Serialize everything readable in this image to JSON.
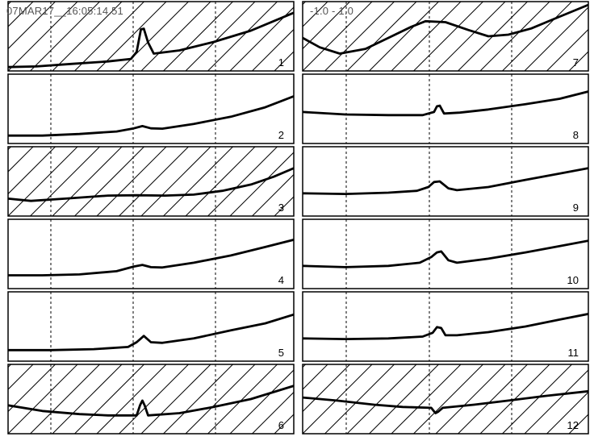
{
  "header": {
    "timestamp": "07MAR17__16:05:14.51",
    "scale": "-1.0 - 1.0"
  },
  "colors": {
    "trace": "#000000",
    "frame": "#000000",
    "hatch": "#000000",
    "gridline": "#000000",
    "background": "#ffffff",
    "header_text": "#555555"
  },
  "chart_data": {
    "type": "line",
    "grid": "dashed vertical",
    "ylim": [
      -1.0,
      1.0
    ],
    "xlim": [
      0,
      1
    ],
    "panels": [
      {
        "label": "1",
        "hatched": true,
        "points": [
          [
            0,
            -0.98
          ],
          [
            0.1,
            -0.96
          ],
          [
            0.22,
            -0.88
          ],
          [
            0.35,
            -0.8
          ],
          [
            0.43,
            -0.72
          ],
          [
            0.45,
            -0.5
          ],
          [
            0.465,
            0.22
          ],
          [
            0.475,
            0.24
          ],
          [
            0.49,
            -0.2
          ],
          [
            0.51,
            -0.55
          ],
          [
            0.6,
            -0.45
          ],
          [
            0.72,
            -0.18
          ],
          [
            0.85,
            0.18
          ],
          [
            1.0,
            0.75
          ]
        ]
      },
      {
        "label": "2",
        "hatched": false,
        "points": [
          [
            0,
            -0.85
          ],
          [
            0.12,
            -0.85
          ],
          [
            0.25,
            -0.8
          ],
          [
            0.38,
            -0.72
          ],
          [
            0.44,
            -0.62
          ],
          [
            0.47,
            -0.55
          ],
          [
            0.5,
            -0.62
          ],
          [
            0.54,
            -0.63
          ],
          [
            0.65,
            -0.48
          ],
          [
            0.78,
            -0.25
          ],
          [
            0.9,
            0.05
          ],
          [
            1.0,
            0.4
          ]
        ]
      },
      {
        "label": "3",
        "hatched": true,
        "points": [
          [
            0,
            -0.55
          ],
          [
            0.08,
            -0.62
          ],
          [
            0.2,
            -0.55
          ],
          [
            0.35,
            -0.45
          ],
          [
            0.45,
            -0.44
          ],
          [
            0.55,
            -0.45
          ],
          [
            0.65,
            -0.42
          ],
          [
            0.75,
            -0.3
          ],
          [
            0.85,
            -0.1
          ],
          [
            0.93,
            0.15
          ],
          [
            1.0,
            0.42
          ]
        ]
      },
      {
        "label": "4",
        "hatched": false,
        "points": [
          [
            0,
            -0.68
          ],
          [
            0.12,
            -0.68
          ],
          [
            0.25,
            -0.65
          ],
          [
            0.38,
            -0.55
          ],
          [
            0.44,
            -0.4
          ],
          [
            0.47,
            -0.35
          ],
          [
            0.5,
            -0.42
          ],
          [
            0.54,
            -0.43
          ],
          [
            0.65,
            -0.28
          ],
          [
            0.78,
            -0.05
          ],
          [
            0.9,
            0.22
          ],
          [
            1.0,
            0.45
          ]
        ]
      },
      {
        "label": "5",
        "hatched": false,
        "points": [
          [
            0,
            -0.75
          ],
          [
            0.15,
            -0.75
          ],
          [
            0.3,
            -0.72
          ],
          [
            0.42,
            -0.65
          ],
          [
            0.45,
            -0.5
          ],
          [
            0.475,
            -0.3
          ],
          [
            0.5,
            -0.5
          ],
          [
            0.54,
            -0.52
          ],
          [
            0.65,
            -0.38
          ],
          [
            0.78,
            -0.12
          ],
          [
            0.9,
            0.1
          ],
          [
            1.0,
            0.38
          ]
        ]
      },
      {
        "label": "6",
        "hatched": true,
        "points": [
          [
            0,
            -0.2
          ],
          [
            0.12,
            -0.38
          ],
          [
            0.25,
            -0.48
          ],
          [
            0.35,
            -0.52
          ],
          [
            0.45,
            -0.52
          ],
          [
            0.462,
            -0.2
          ],
          [
            0.47,
            -0.05
          ],
          [
            0.478,
            -0.2
          ],
          [
            0.49,
            -0.52
          ],
          [
            0.6,
            -0.45
          ],
          [
            0.72,
            -0.25
          ],
          [
            0.85,
            0.0
          ],
          [
            1.0,
            0.42
          ]
        ]
      },
      {
        "label": "7",
        "hatched": true,
        "points": [
          [
            0,
            -0.05
          ],
          [
            0.06,
            -0.35
          ],
          [
            0.13,
            -0.55
          ],
          [
            0.22,
            -0.4
          ],
          [
            0.3,
            -0.05
          ],
          [
            0.38,
            0.3
          ],
          [
            0.43,
            0.48
          ],
          [
            0.5,
            0.45
          ],
          [
            0.58,
            0.2
          ],
          [
            0.65,
            0.0
          ],
          [
            0.72,
            0.05
          ],
          [
            0.8,
            0.25
          ],
          [
            0.88,
            0.55
          ],
          [
            1.0,
            1.0
          ]
        ]
      },
      {
        "label": "8",
        "hatched": false,
        "points": [
          [
            0,
            -0.1
          ],
          [
            0.15,
            -0.18
          ],
          [
            0.3,
            -0.2
          ],
          [
            0.42,
            -0.2
          ],
          [
            0.46,
            -0.1
          ],
          [
            0.47,
            0.08
          ],
          [
            0.48,
            0.1
          ],
          [
            0.495,
            -0.15
          ],
          [
            0.55,
            -0.12
          ],
          [
            0.65,
            -0.02
          ],
          [
            0.78,
            0.15
          ],
          [
            0.9,
            0.32
          ],
          [
            1.0,
            0.55
          ]
        ]
      },
      {
        "label": "9",
        "hatched": false,
        "points": [
          [
            0,
            -0.38
          ],
          [
            0.15,
            -0.4
          ],
          [
            0.3,
            -0.36
          ],
          [
            0.4,
            -0.3
          ],
          [
            0.44,
            -0.18
          ],
          [
            0.46,
            -0.02
          ],
          [
            0.48,
            0.0
          ],
          [
            0.51,
            -0.22
          ],
          [
            0.54,
            -0.28
          ],
          [
            0.65,
            -0.18
          ],
          [
            0.78,
            0.05
          ],
          [
            0.9,
            0.25
          ],
          [
            1.0,
            0.42
          ]
        ]
      },
      {
        "label": "10",
        "hatched": false,
        "points": [
          [
            0,
            -0.38
          ],
          [
            0.15,
            -0.42
          ],
          [
            0.3,
            -0.38
          ],
          [
            0.41,
            -0.28
          ],
          [
            0.45,
            -0.1
          ],
          [
            0.47,
            0.05
          ],
          [
            0.485,
            0.08
          ],
          [
            0.51,
            -0.2
          ],
          [
            0.54,
            -0.28
          ],
          [
            0.65,
            -0.15
          ],
          [
            0.78,
            0.05
          ],
          [
            0.9,
            0.25
          ],
          [
            1.0,
            0.42
          ]
        ]
      },
      {
        "label": "11",
        "hatched": false,
        "points": [
          [
            0,
            -0.38
          ],
          [
            0.15,
            -0.4
          ],
          [
            0.3,
            -0.38
          ],
          [
            0.42,
            -0.32
          ],
          [
            0.455,
            -0.2
          ],
          [
            0.47,
            -0.02
          ],
          [
            0.485,
            -0.05
          ],
          [
            0.5,
            -0.28
          ],
          [
            0.54,
            -0.28
          ],
          [
            0.65,
            -0.18
          ],
          [
            0.78,
            0.0
          ],
          [
            0.9,
            0.22
          ],
          [
            1.0,
            0.4
          ]
        ]
      },
      {
        "label": "12",
        "hatched": true,
        "points": [
          [
            0,
            0.05
          ],
          [
            0.12,
            -0.05
          ],
          [
            0.25,
            -0.18
          ],
          [
            0.35,
            -0.25
          ],
          [
            0.45,
            -0.28
          ],
          [
            0.465,
            -0.45
          ],
          [
            0.475,
            -0.4
          ],
          [
            0.49,
            -0.28
          ],
          [
            0.6,
            -0.18
          ],
          [
            0.72,
            -0.05
          ],
          [
            0.85,
            0.1
          ],
          [
            1.0,
            0.25
          ]
        ]
      }
    ]
  }
}
